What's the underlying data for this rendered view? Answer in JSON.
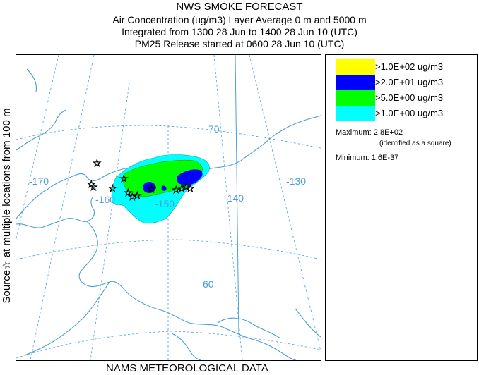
{
  "header": {
    "title": "NWS SMOKE FORECAST",
    "line2": "Air Concentration (ug/m3) Layer Average    0 m and  5000 m",
    "line3": "Integrated from 1300 28 Jun to 1400 28 Jun 10 (UTC)",
    "line4": "PM25 Release started at 0600 28 Jun 10 (UTC)"
  },
  "yaxis_label": "Source☆ at multiple locations   from   100 m",
  "footer": "NAMS METEOROLOGICAL DATA",
  "map": {
    "lon_labels": [
      "-170",
      "-160",
      "-150",
      "-140",
      "-130"
    ],
    "lat_labels": [
      "70",
      "60"
    ],
    "colors": {
      "land_outline": "#4a9fd6",
      "graticule": "#4a9fd6",
      "level1": "#00ffff",
      "level2": "#00ff00",
      "level3": "#0000ff"
    }
  },
  "legend": {
    "items": [
      {
        "label": ">1.0E+02 ug/m3",
        "color": "#ffff00"
      },
      {
        "label": ">2.0E+01 ug/m3",
        "color": "#0000ff"
      },
      {
        "label": ">5.0E+00 ug/m3",
        "color": "#00ff00"
      },
      {
        "label": ">1.0E+00 ug/m3",
        "color": "#00ffff"
      }
    ],
    "maximum_label": "Maximum:",
    "maximum_value": "2.8E+02",
    "maximum_note": "(identified as a square)",
    "minimum_label": "Minimum:",
    "minimum_value": "1.6E-37"
  }
}
